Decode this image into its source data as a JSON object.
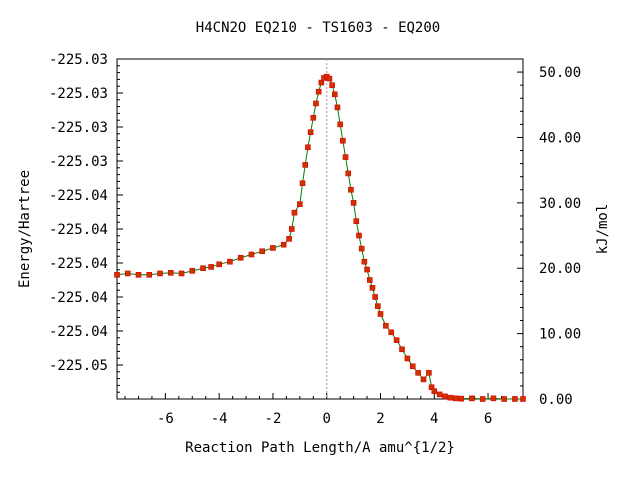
{
  "chart_data": {
    "type": "scatter",
    "title": "H4CN2O   EQ210 - TS1603 - EQ200",
    "xlabel": "Reaction Path Length/A amu^{1/2}",
    "ylabel": "Energy/Hartree",
    "y2label": "kJ/mol",
    "xlim": [
      -7.8,
      7.3
    ],
    "x_ticks": [
      -6,
      -4,
      -2,
      0,
      2,
      4,
      6
    ],
    "x_tick_labels": [
      "-6",
      "-4",
      "-2",
      "0",
      "2",
      "4",
      "6"
    ],
    "y2lim": [
      0,
      52
    ],
    "y2_ticks": [
      0,
      10,
      20,
      30,
      40,
      50
    ],
    "y2_tick_labels": [
      "0.00",
      "10.00",
      "20.00",
      "30.00",
      "40.00",
      "50.00"
    ],
    "y_tick_labels": [
      "-225.03",
      "-225.03",
      "-225.03",
      "-225.03",
      "-225.04",
      "-225.04",
      "-225.04",
      "-225.04",
      "-225.04",
      "-225.05"
    ],
    "ts_marker_x": 0,
    "grid": false,
    "colors": {
      "line": "#008000",
      "point_fill": "#cc3300",
      "point_edge": "#dd0000",
      "marker_line": "#999999"
    },
    "series": [
      {
        "x": [
          -7.8,
          -7.4,
          -7.0,
          -6.6,
          -6.2,
          -5.8,
          -5.4,
          -5.0,
          -4.6,
          -4.3,
          -4.0,
          -3.6,
          -3.2,
          -2.8,
          -2.4,
          -2.0,
          -1.6,
          -1.4,
          -1.3,
          -1.2,
          -1.0,
          -0.9,
          -0.8,
          -0.7,
          -0.6,
          -0.5,
          -0.4,
          -0.3,
          -0.2,
          -0.1,
          0.0,
          0.1,
          0.2,
          0.3,
          0.4,
          0.5,
          0.6,
          0.7,
          0.8,
          0.9,
          1.0,
          1.1,
          1.2,
          1.3,
          1.4,
          1.5,
          1.6,
          1.7,
          1.8,
          1.9,
          2.0,
          2.2,
          2.4,
          2.6,
          2.8,
          3.0,
          3.2,
          3.4,
          3.6,
          3.8,
          3.9,
          4.0,
          4.2,
          4.4,
          4.6,
          4.8,
          5.0,
          5.4,
          5.8,
          6.2,
          6.6,
          7.0,
          7.3
        ],
        "y": [
          19.0,
          19.2,
          19.0,
          19.0,
          19.2,
          19.3,
          19.2,
          19.6,
          20.0,
          20.2,
          20.6,
          21.0,
          21.6,
          22.1,
          22.6,
          23.1,
          23.6,
          24.5,
          26.0,
          28.5,
          29.8,
          33.0,
          35.8,
          38.5,
          40.8,
          43.0,
          45.2,
          47.0,
          48.4,
          49.1,
          49.3,
          49.0,
          48.0,
          46.6,
          44.6,
          42.0,
          39.5,
          37.0,
          34.5,
          32.0,
          30.0,
          27.2,
          25.0,
          23.0,
          21.0,
          19.8,
          18.2,
          17.0,
          15.6,
          14.2,
          13.0,
          11.2,
          10.2,
          9.0,
          7.6,
          6.2,
          5.0,
          4.0,
          3.0,
          4.0,
          1.8,
          1.2,
          0.7,
          0.4,
          0.2,
          0.1,
          0.05,
          0.1,
          0.0,
          0.1,
          0.0,
          0.0,
          0.0
        ]
      }
    ]
  }
}
